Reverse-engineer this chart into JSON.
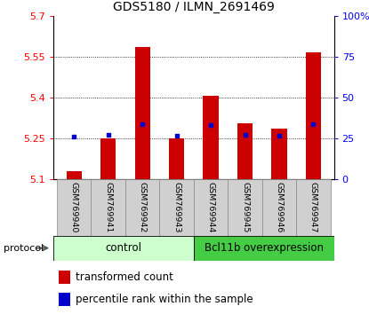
{
  "title": "GDS5180 / ILMN_2691469",
  "samples": [
    "GSM769940",
    "GSM769941",
    "GSM769942",
    "GSM769943",
    "GSM769944",
    "GSM769945",
    "GSM769946",
    "GSM769947"
  ],
  "transformed_count": [
    5.13,
    5.25,
    5.585,
    5.25,
    5.405,
    5.305,
    5.285,
    5.565
  ],
  "percentile_rank_pct": [
    26,
    27,
    33.5,
    26.5,
    33,
    27,
    26.5,
    33.5
  ],
  "ylim": [
    5.1,
    5.7
  ],
  "yticks": [
    5.1,
    5.25,
    5.4,
    5.55,
    5.7
  ],
  "ytick_labels": [
    "5.1",
    "5.25",
    "5.4",
    "5.55",
    "5.7"
  ],
  "right_yticks": [
    0,
    25,
    50,
    75,
    100
  ],
  "right_ylim": [
    0,
    100
  ],
  "right_ytick_labels": [
    "0",
    "25",
    "50",
    "75",
    "100%"
  ],
  "bar_color": "#cc0000",
  "blue_color": "#0000cc",
  "bar_width": 0.45,
  "control_color": "#ccffcc",
  "bcl_color": "#44cc44",
  "protocol_label": "protocol",
  "grid_dotted_at": [
    5.25,
    5.4,
    5.55
  ],
  "legend_items": [
    {
      "color": "#cc0000",
      "label": "transformed count"
    },
    {
      "color": "#0000cc",
      "label": "percentile rank within the sample"
    }
  ]
}
